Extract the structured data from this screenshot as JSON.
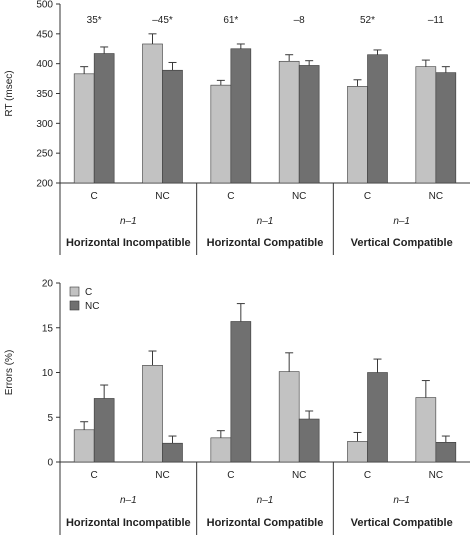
{
  "colors": {
    "C": "#c2c2c2",
    "NC": "#707070",
    "edge": "#3a3a3a",
    "axis": "#333333"
  },
  "chart_data": [
    {
      "type": "bar",
      "ylabel": "RT (msec)",
      "ylim": [
        200,
        500
      ],
      "yticks": [
        200,
        250,
        300,
        350,
        400,
        450,
        500
      ],
      "grid": false,
      "legend": "none",
      "groups": [
        "Horizontal Incompatible",
        "Horizontal Compatible",
        "Vertical Compatible"
      ],
      "group_prefix": "n–1",
      "categories": [
        "C",
        "NC",
        "C",
        "NC",
        "C",
        "NC"
      ],
      "annotations": [
        "35*",
        "–45*",
        "61*",
        "–8",
        "52*",
        "–11"
      ],
      "series": [
        {
          "name": "C",
          "values": [
            383,
            433,
            364,
            404,
            362,
            395
          ],
          "errors": [
            12,
            17,
            8,
            11,
            11,
            11
          ]
        },
        {
          "name": "NC",
          "values": [
            417,
            389,
            425,
            397,
            415,
            385
          ],
          "errors": [
            11,
            13,
            8,
            8,
            8,
            10
          ]
        }
      ]
    },
    {
      "type": "bar",
      "ylabel": "Errors (%)",
      "ylim": [
        0,
        20
      ],
      "yticks": [
        0,
        5,
        10,
        15,
        20
      ],
      "grid": false,
      "legend": "top-left",
      "groups": [
        "Horizontal Incompatible",
        "Horizontal Compatible",
        "Vertical Compatible"
      ],
      "group_prefix": "n–1",
      "categories": [
        "C",
        "NC",
        "C",
        "NC",
        "C",
        "NC"
      ],
      "series": [
        {
          "name": "C",
          "values": [
            3.6,
            10.8,
            2.7,
            10.1,
            2.3,
            7.2
          ],
          "errors": [
            0.9,
            1.6,
            0.8,
            2.1,
            1.0,
            1.9
          ]
        },
        {
          "name": "NC",
          "values": [
            7.1,
            2.1,
            15.7,
            4.8,
            10.0,
            2.2
          ],
          "errors": [
            1.5,
            0.8,
            2.0,
            0.9,
            1.5,
            0.7
          ]
        }
      ]
    }
  ]
}
